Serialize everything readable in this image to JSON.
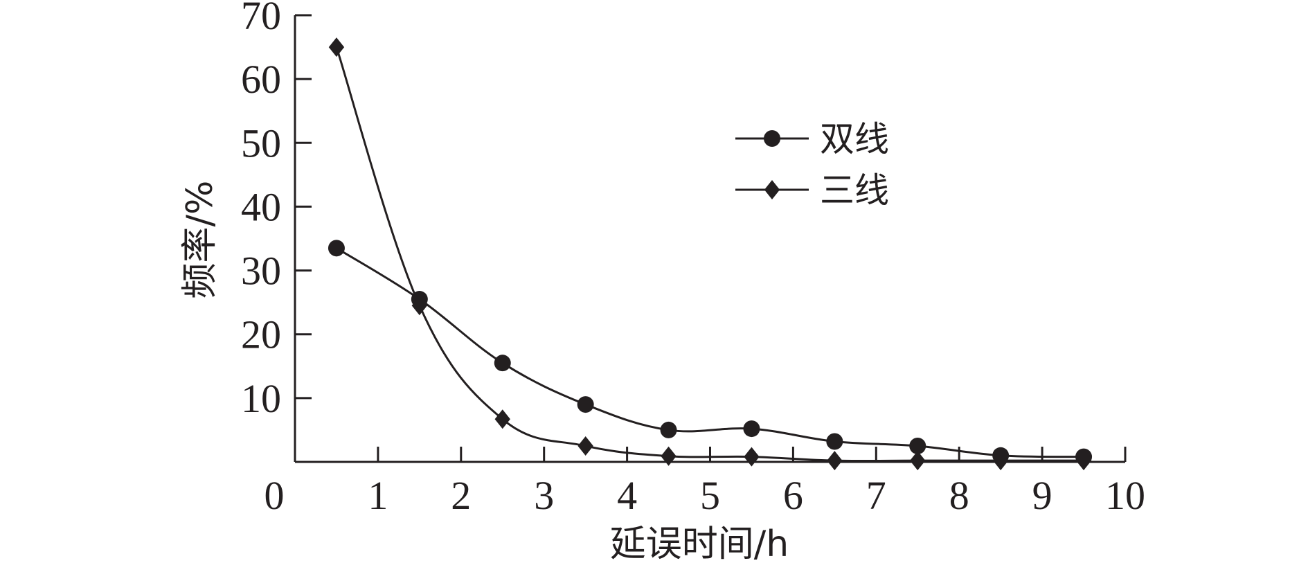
{
  "chart_data": {
    "type": "line",
    "title": "",
    "xlabel": "延误时间/h",
    "ylabel": "频率/%",
    "xlim": [
      0,
      10
    ],
    "ylim": [
      0,
      70
    ],
    "xticks": [
      0,
      1,
      2,
      3,
      4,
      5,
      6,
      7,
      8,
      9,
      10
    ],
    "yticks": [
      10,
      20,
      30,
      40,
      50,
      60,
      70
    ],
    "xtick_labels": [
      "0",
      "1",
      "2",
      "3",
      "4",
      "5",
      "6",
      "7",
      "8",
      "9",
      "10"
    ],
    "ytick_labels": [
      "10",
      "20",
      "30",
      "40",
      "50",
      "60",
      "70"
    ],
    "grid": false,
    "legend_position": "top-right",
    "x": [
      0.5,
      1.5,
      2.5,
      3.5,
      4.5,
      5.5,
      6.5,
      7.5,
      8.5,
      9.5
    ],
    "series": [
      {
        "name": "双线",
        "marker": "circle",
        "values": [
          33.5,
          25.5,
          15.5,
          9.0,
          5.0,
          5.2,
          3.2,
          2.5,
          1.0,
          0.8
        ]
      },
      {
        "name": "三线",
        "marker": "diamond",
        "values": [
          65.0,
          24.5,
          6.7,
          2.5,
          0.9,
          0.8,
          0.2,
          0.2,
          0.2,
          0.2
        ]
      }
    ],
    "colors": {
      "ink": "#231f20",
      "background": "#ffffff"
    }
  }
}
